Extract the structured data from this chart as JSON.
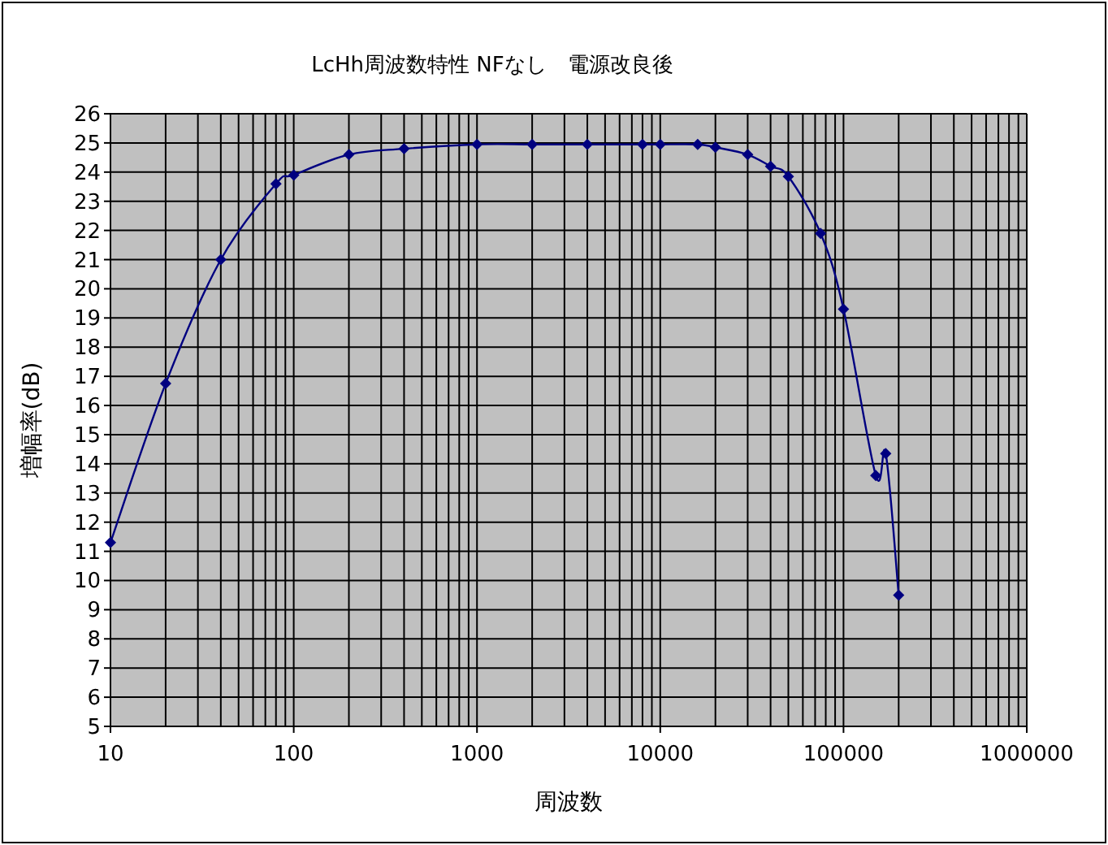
{
  "chart_data": {
    "type": "line",
    "title": "LcHh周波数特性 NFなし　電源改良後",
    "xlabel": "周波数",
    "ylabel": "増幅率(dB)",
    "log": "x",
    "grid": true,
    "marker": "diamond",
    "line_style": "solid",
    "color": "#000080",
    "x": [
      10,
      20,
      40,
      80,
      100,
      200,
      400,
      1000,
      2000,
      4000,
      8000,
      10000,
      16000,
      20000,
      30000,
      40000,
      50000,
      75000,
      100000,
      150000,
      170000,
      200000
    ],
    "values": [
      11.3,
      16.75,
      21.0,
      23.6,
      23.9,
      24.6,
      24.8,
      24.95,
      24.95,
      24.95,
      24.95,
      24.95,
      24.95,
      24.85,
      24.6,
      24.2,
      23.85,
      21.9,
      19.3,
      13.6,
      14.35,
      9.5
    ],
    "xlim": [
      10,
      1000000
    ],
    "ylim": [
      5,
      26
    ],
    "xticks": [
      10,
      100,
      1000,
      10000,
      100000,
      1000000
    ],
    "yticks": [
      5,
      6,
      7,
      8,
      9,
      10,
      11,
      12,
      13,
      14,
      15,
      16,
      17,
      18,
      19,
      20,
      21,
      22,
      23,
      24,
      25,
      26
    ]
  }
}
